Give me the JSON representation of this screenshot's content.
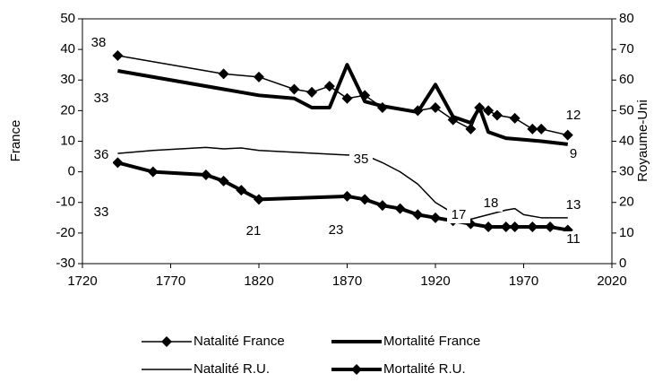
{
  "chart_data": {
    "type": "line",
    "ylabel": "France",
    "y2label": "Royaume-Uni",
    "xlim": [
      1720,
      2020
    ],
    "xticks": [
      1720,
      1770,
      1820,
      1870,
      1920,
      1970,
      2020
    ],
    "ylim": [
      -30,
      50
    ],
    "yticks": [
      -30,
      -20,
      -10,
      0,
      10,
      20,
      30,
      40,
      50
    ],
    "y2lim": [
      0,
      80
    ],
    "y2ticks": [
      0,
      10,
      20,
      30,
      40,
      50,
      60,
      70,
      80
    ],
    "legend": "bottom",
    "series": [
      {
        "name": "Natalité France",
        "color": "#000000",
        "width": 1.5,
        "marker": "diamond",
        "x": [
          1740,
          1800,
          1820,
          1840,
          1850,
          1860,
          1870,
          1880,
          1890,
          1910,
          1920,
          1930,
          1940,
          1945,
          1950,
          1955,
          1965,
          1975,
          1980,
          1995
        ],
        "values": [
          38,
          32,
          31,
          27,
          26,
          28,
          24,
          25,
          21,
          20,
          21,
          17,
          14,
          21,
          20,
          18.5,
          17.5,
          14,
          14,
          12
        ]
      },
      {
        "name": "Mortalité France",
        "color": "#000000",
        "width": 4,
        "marker": null,
        "x": [
          1740,
          1820,
          1840,
          1850,
          1860,
          1870,
          1880,
          1890,
          1910,
          1920,
          1930,
          1940,
          1945,
          1950,
          1960,
          1970,
          1980,
          1995
        ],
        "values": [
          33,
          25,
          24,
          21,
          21,
          35,
          23,
          21.5,
          19.5,
          28.5,
          18,
          16,
          21,
          13,
          11,
          10.5,
          10,
          9
        ]
      },
      {
        "name": "Natalité R.U.",
        "color": "#000000",
        "width": 1.5,
        "marker": null,
        "axis": "y2",
        "x": [
          1740,
          1760,
          1790,
          1800,
          1810,
          1820,
          1870,
          1880,
          1890,
          1900,
          1910,
          1920,
          1930,
          1940,
          1950,
          1960,
          1965,
          1970,
          1980,
          1995
        ],
        "values": [
          36,
          37,
          38,
          37.5,
          37.8,
          37,
          35.5,
          35.5,
          33,
          30,
          26,
          20,
          16.5,
          14.5,
          16,
          17.5,
          18,
          16,
          15,
          15
        ]
      },
      {
        "name": "Mortalité R.U.",
        "color": "#000000",
        "width": 4,
        "marker": "diamond",
        "axis": "y2",
        "x": [
          1740,
          1760,
          1790,
          1800,
          1810,
          1820,
          1870,
          1880,
          1890,
          1900,
          1910,
          1920,
          1930,
          1940,
          1950,
          1960,
          1965,
          1975,
          1985,
          1995
        ],
        "values": [
          33,
          30,
          29,
          27,
          24,
          21,
          22,
          21,
          19,
          18,
          16,
          15,
          14,
          13,
          12,
          12,
          12,
          12,
          12,
          11
        ]
      }
    ],
    "annotations": [
      "38",
      "33",
      "36",
      "33",
      "21",
      "23",
      "35",
      "17",
      "18",
      "12",
      "9",
      "13",
      "11"
    ]
  }
}
